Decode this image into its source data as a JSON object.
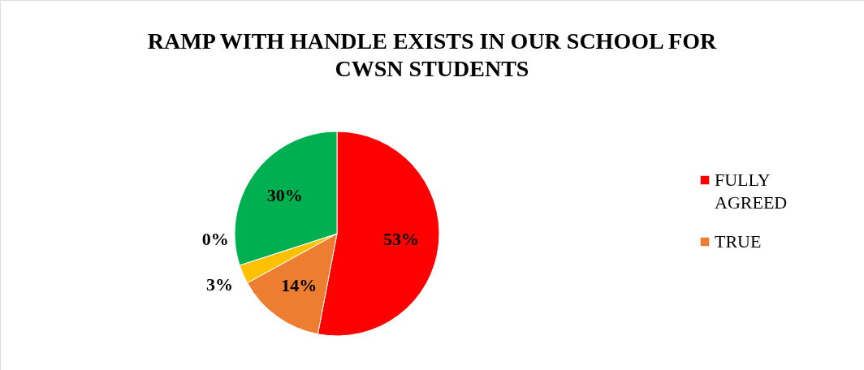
{
  "chart_data": {
    "type": "pie",
    "title": "RAMP WITH HANDLE EXISTS IN OUR SCHOOL FOR CWSN STUDENTS",
    "categories": [
      "FULLY AGREED",
      "TRUE",
      null,
      null,
      null
    ],
    "values": [
      53,
      14,
      3,
      0,
      30
    ],
    "colors": [
      "#ff0000",
      "#ed7d31",
      "#ffc000",
      "#a5a5a5",
      "#00b050"
    ],
    "value_labels": [
      "53%",
      "14%",
      "3%",
      "0%",
      "30%"
    ],
    "legend": "right"
  }
}
